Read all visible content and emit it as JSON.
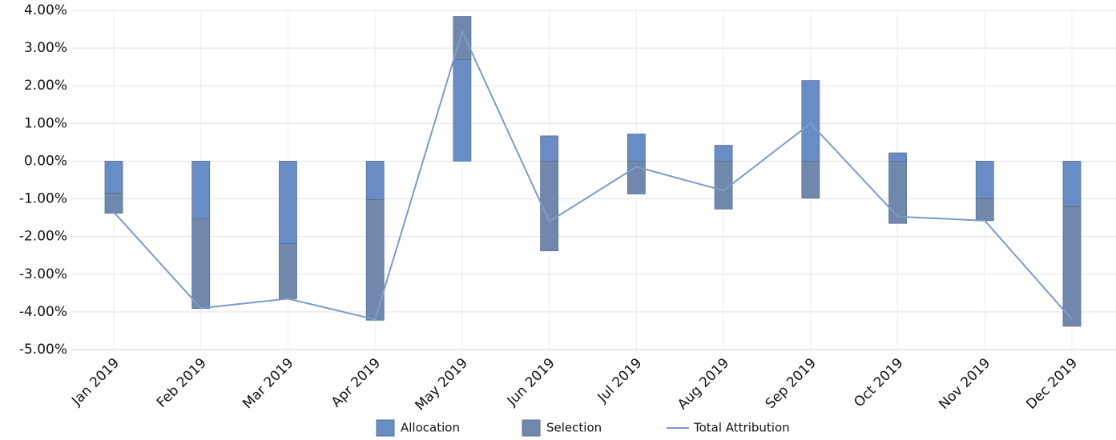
{
  "chart_data": {
    "type": "bar-line",
    "categories": [
      "Jan 2019",
      "Feb 2019",
      "Mar 2019",
      "Apr 2019",
      "May 2019",
      "Jun 2019",
      "Jul 2019",
      "Aug 2019",
      "Sep 2019",
      "Oct 2019",
      "Nov 2019",
      "Dec 2019"
    ],
    "series": [
      {
        "name": "Allocation",
        "type": "bar",
        "color": "#6a8cc4",
        "values": [
          -0.85,
          -1.53,
          -2.19,
          -1.02,
          2.7,
          0.67,
          0.72,
          0.42,
          2.14,
          0.22,
          -1.0,
          -1.2
        ]
      },
      {
        "name": "Selection",
        "type": "bar",
        "color": "#7088ab",
        "values": [
          -0.53,
          -2.38,
          -1.46,
          -3.2,
          1.14,
          -2.38,
          -0.87,
          -1.27,
          -0.98,
          -1.65,
          -0.58,
          -3.18
        ]
      },
      {
        "name": "Total Attribution",
        "type": "line",
        "color": "#7d9acb",
        "values": [
          -1.35,
          -3.9,
          -3.65,
          -4.2,
          3.44,
          -1.6,
          -0.15,
          -0.78,
          1.0,
          -1.47,
          -1.58,
          -4.2
        ]
      }
    ],
    "ylim": [
      -5,
      4
    ],
    "yticks": [
      {
        "value": -5,
        "label": "-5.00%"
      },
      {
        "value": -4,
        "label": "-4.00%"
      },
      {
        "value": -3,
        "label": "-3.00%"
      },
      {
        "value": -2,
        "label": "-2.00%"
      },
      {
        "value": -1,
        "label": "-1.00%"
      },
      {
        "value": 0,
        "label": "0.00%"
      },
      {
        "value": 1,
        "label": "1.00%"
      },
      {
        "value": 2,
        "label": "2.00%"
      },
      {
        "value": 3,
        "label": "3.00%"
      },
      {
        "value": 4,
        "label": "4.00%"
      }
    ],
    "grid": true
  }
}
